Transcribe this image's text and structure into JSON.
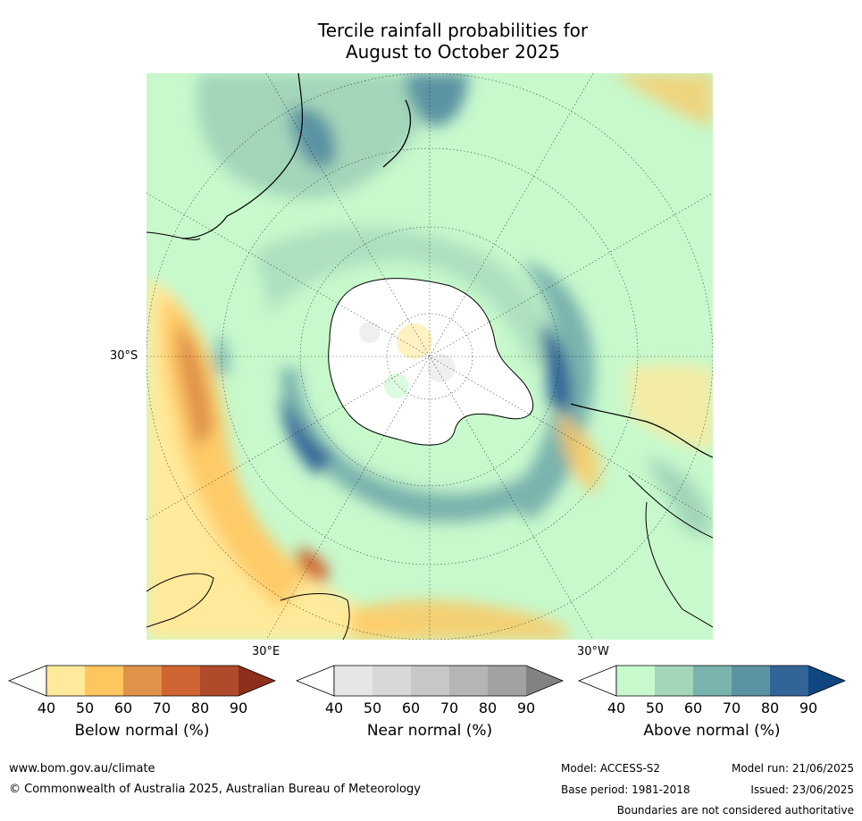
{
  "title_line1": "Tercile rainfall probabilities for",
  "title_line2": "August to October 2025",
  "map_labels": {
    "lat": "30°S",
    "lon_east": "30°E",
    "lon_west": "30°W"
  },
  "colorbars": [
    {
      "name": "below",
      "title": "Below normal (%)",
      "ticks": [
        "40",
        "50",
        "60",
        "70",
        "80",
        "90"
      ],
      "colors": [
        "#ffe99a",
        "#fec65f",
        "#e0924a",
        "#cf6532",
        "#b04a2b",
        "#8e2f1c"
      ]
    },
    {
      "name": "near",
      "title": "Near normal (%)",
      "ticks": [
        "40",
        "50",
        "60",
        "70",
        "80",
        "90"
      ],
      "colors": [
        "#e6e6e6",
        "#d8d8d8",
        "#c7c7c7",
        "#b5b5b5",
        "#a2a2a2",
        "#828282"
      ]
    },
    {
      "name": "above",
      "title": "Above normal (%)",
      "ticks": [
        "40",
        "50",
        "60",
        "70",
        "80",
        "90"
      ],
      "colors": [
        "#c7f9cd",
        "#a3d6b9",
        "#7ab3ad",
        "#5b93a3",
        "#326498",
        "#10467f"
      ]
    }
  ],
  "footer": {
    "website": "www.bom.gov.au/climate",
    "copyright": "© Commonwealth of Australia 2025, Australian Bureau of Meteorology",
    "model": "Model: ACCESS-S2",
    "model_run": "Model run: 21/06/2025",
    "base_period": "Base period: 1981-2018",
    "issued": "Issued: 23/06/2025",
    "disclaimer": "Boundaries are not considered authoritative"
  }
}
